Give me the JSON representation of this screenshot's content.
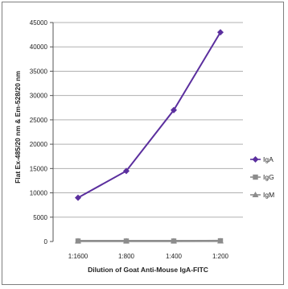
{
  "colors": {
    "IgA": "#5b2f9e",
    "IgG": "#8c8c8c",
    "IgM": "#8c8c8c",
    "grid": "#b0b0b0",
    "frame": "#7f7f7f"
  },
  "chart_data": {
    "type": "line",
    "title": "",
    "xlabel": "Dilution of Goat Anti-Mouse IgA-FITC",
    "ylabel": "Flat Ex-485/20 nm & Em-528/20 nm",
    "categories": [
      "1:1600",
      "1:800",
      "1:400",
      "1:200"
    ],
    "ylim": [
      0,
      45000
    ],
    "yticks": [
      {
        "value": 0,
        "label": "0"
      },
      {
        "value": 5000,
        "label": "5000"
      },
      {
        "value": 10000,
        "label": "10000"
      },
      {
        "value": 15000,
        "label": "15000"
      },
      {
        "value": 20000,
        "label": "20000"
      },
      {
        "value": 25000,
        "label": "25000"
      },
      {
        "value": 30000,
        "label": "30000"
      },
      {
        "value": 35000,
        "label": "35000"
      },
      {
        "value": 40000,
        "label": "40000"
      },
      {
        "value": 45000,
        "label": "45000"
      }
    ],
    "grid": true,
    "legend_position": "right",
    "series": [
      {
        "name": "IgA",
        "values": [
          9000,
          14500,
          27000,
          43000
        ],
        "marker": "diamond"
      },
      {
        "name": "IgG",
        "values": [
          100,
          100,
          100,
          150
        ],
        "marker": "square"
      },
      {
        "name": "IgM",
        "values": [
          100,
          100,
          100,
          100
        ],
        "marker": "triangle"
      }
    ]
  }
}
